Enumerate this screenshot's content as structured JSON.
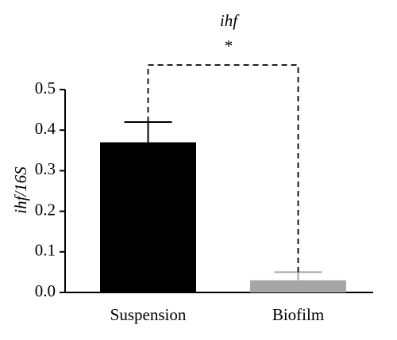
{
  "chart_data": {
    "type": "bar",
    "title": "ihf",
    "annotation": "*",
    "y_label": "ihf/16S",
    "categories": [
      "Suspension",
      "Biofilm"
    ],
    "values": [
      0.37,
      0.03
    ],
    "errors": [
      0.05,
      0.02
    ],
    "colors": [
      "#000000",
      "#a6a6a6"
    ],
    "ylim": [
      0,
      0.5
    ],
    "yticks": [
      {
        "value": 0,
        "label": "0.0"
      },
      0.1,
      0.2,
      0.3,
      0.4,
      0.5
    ]
  }
}
